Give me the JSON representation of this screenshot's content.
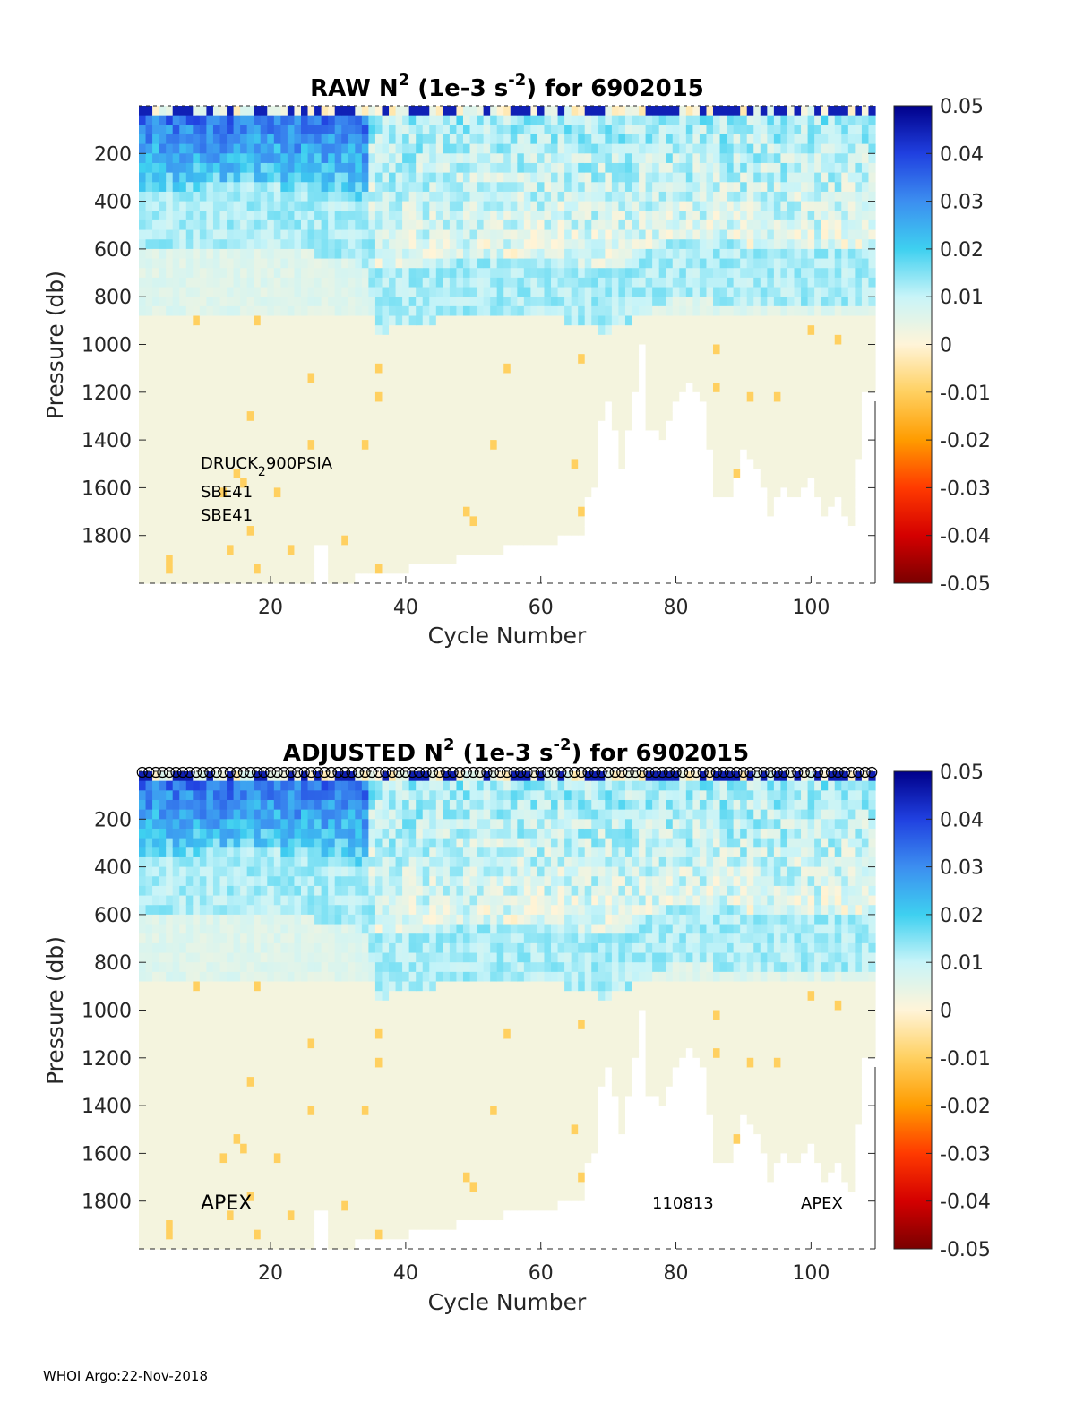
{
  "chart_data": [
    {
      "type": "heatmap",
      "title": {
        "prefix": "RAW N",
        "sup1": "2",
        "mid": " (1e-3 s",
        "sup2": "-2",
        "suffix": ") for 6902015"
      },
      "xlabel": "Cycle Number",
      "ylabel": "Pressure (db)",
      "xlim": [
        1,
        109
      ],
      "ylim": [
        0,
        2000
      ],
      "y_reversed": true,
      "xticks": [
        20,
        40,
        60,
        80,
        100
      ],
      "yticks": [
        200,
        400,
        600,
        800,
        1000,
        1200,
        1400,
        1600,
        1800
      ],
      "colorbar": {
        "min": -0.05,
        "max": 0.05,
        "ticks": [
          "0.05",
          "0.04",
          "0.03",
          "0.02",
          "0.01",
          "0",
          "-0.01",
          "-0.02",
          "-0.03",
          "-0.04",
          "-0.05"
        ]
      },
      "annotations": [
        "DRUCK",
        "2",
        "900PSIA",
        "SBE41",
        "SBE41"
      ],
      "description_of_field": {
        "surface_layer_max_n2": 0.05,
        "mixed_layer_bottom_db_by_cycle": [
          [
            1,
            350
          ],
          [
            20,
            330
          ],
          [
            34,
            420
          ],
          [
            36,
            700
          ],
          [
            45,
            650
          ],
          [
            60,
            620
          ],
          [
            70,
            700
          ],
          [
            80,
            560
          ],
          [
            90,
            580
          ],
          [
            109,
            600
          ]
        ],
        "deep_value": 0.002,
        "max_profile_depth_db_by_cycle": [
          [
            1,
            2000
          ],
          [
            26,
            2000
          ],
          [
            27,
            1850
          ],
          [
            28,
            1850
          ],
          [
            29,
            2000
          ],
          [
            66,
            1800
          ],
          [
            67,
            1650
          ],
          [
            68,
            1600
          ],
          [
            69,
            1300
          ],
          [
            70,
            1250
          ],
          [
            72,
            1500
          ],
          [
            74,
            1200
          ],
          [
            75,
            1000
          ],
          [
            76,
            1350
          ],
          [
            78,
            1400
          ],
          [
            80,
            1250
          ],
          [
            82,
            1150
          ],
          [
            84,
            1250
          ],
          [
            86,
            1620
          ],
          [
            88,
            1650
          ],
          [
            90,
            1450
          ],
          [
            92,
            1500
          ],
          [
            94,
            1700
          ],
          [
            96,
            1600
          ],
          [
            98,
            1640
          ],
          [
            100,
            1550
          ],
          [
            102,
            1700
          ],
          [
            104,
            1650
          ],
          [
            106,
            1750
          ],
          [
            108,
            1200
          ],
          [
            109,
            1200
          ]
        ]
      }
    },
    {
      "type": "heatmap",
      "title": {
        "prefix": "ADJUSTED N",
        "sup1": "2",
        "mid": " (1e-3 s",
        "sup2": "-2",
        "suffix": ") for 6902015"
      },
      "xlabel": "Cycle Number",
      "ylabel": "Pressure (db)",
      "xlim": [
        1,
        109
      ],
      "ylim": [
        0,
        2000
      ],
      "y_reversed": true,
      "xticks": [
        20,
        40,
        60,
        80,
        100
      ],
      "yticks": [
        200,
        400,
        600,
        800,
        1000,
        1200,
        1400,
        1600,
        1800
      ],
      "colorbar": {
        "min": -0.05,
        "max": 0.05,
        "ticks": [
          "0.05",
          "0.04",
          "0.03",
          "0.02",
          "0.01",
          "0",
          "-0.01",
          "-0.02",
          "-0.03",
          "-0.04",
          "-0.05"
        ]
      },
      "annotations": [
        "APEX",
        "110813",
        "APEX"
      ],
      "qc_markers": "open circle at surface for every cycle 1-109"
    }
  ],
  "footer": "WHOI Argo:22-Nov-2018",
  "colors": {
    "deep_background": "#e8f8ec",
    "colormap": [
      "#7a0000",
      "#d40000",
      "#ff3a00",
      "#ff9c00",
      "#ffd060",
      "#fff4d8",
      "#c8f4f8",
      "#3ed0f0",
      "#3c8ef0",
      "#2040e0",
      "#00008a"
    ]
  }
}
